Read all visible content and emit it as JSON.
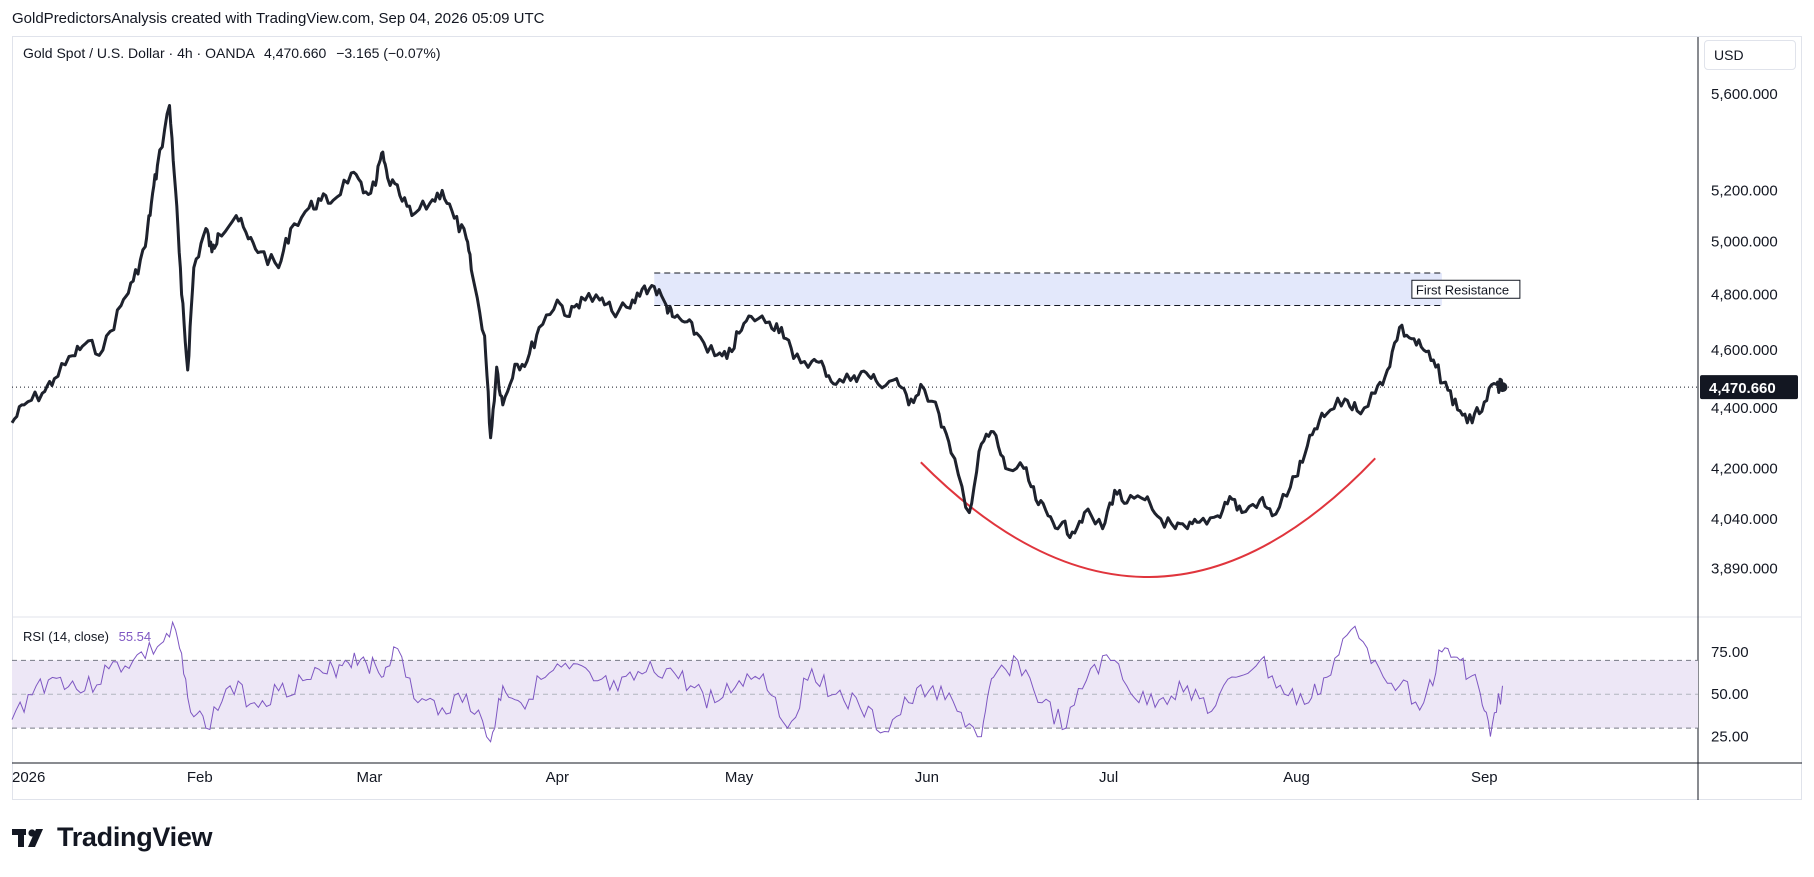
{
  "attribution": "GoldPredictorsAnalysis created with TradingView.com, Sep 04, 2026 05:09 UTC",
  "legend": {
    "symbol": "Gold Spot / U.S. Dollar",
    "interval": "4h",
    "source": "OANDA",
    "price": "4,470.660",
    "change": "−3.165 (−0.07%)"
  },
  "currency_button": "USD",
  "rsi_legend": {
    "label": "RSI (14, close)",
    "value": "55.54"
  },
  "logo_text": "TradingView",
  "colors": {
    "price_line": "#1e222d",
    "rsi_line": "#7e57c2",
    "rsi_band": "#ede7f6",
    "resistance_zone": "#e3e8fb",
    "arc": "#e0353d",
    "price_label_bg": "#131722"
  },
  "chart_data": [
    {
      "type": "line",
      "title": "Gold Spot / U.S. Dollar · 4h · OANDA",
      "y_scale": "log",
      "ylim": [
        3750,
        5850
      ],
      "y_ticks": [
        "5,600.000",
        "5,200.000",
        "5,000.000",
        "4,800.000",
        "4,600.000",
        "4,400.000",
        "4,200.000",
        "4,040.000",
        "3,890.000"
      ],
      "y_tick_values": [
        5600,
        5200,
        5000,
        4800,
        4600,
        4400,
        4200,
        4040,
        3890
      ],
      "x_labels": [
        "2026",
        "Feb",
        "Mar",
        "Apr",
        "May",
        "Jun",
        "Jul",
        "Aug",
        "Sep"
      ],
      "x_label_dates": [
        "2026-01-01",
        "2026-02-01",
        "2026-03-01",
        "2026-04-01",
        "2026-05-01",
        "2026-06-01",
        "2026-07-01",
        "2026-08-01",
        "2026-09-01"
      ],
      "xlim": [
        "2026-01-01",
        "2026-09-30"
      ],
      "series": [
        {
          "x": [
            "2026-01-01",
            "2026-01-03",
            "2026-01-06",
            "2026-01-08",
            "2026-01-11",
            "2026-01-13",
            "2026-01-16",
            "2026-01-19",
            "2026-01-21",
            "2026-01-23",
            "2026-01-24",
            "2026-01-25",
            "2026-01-27",
            "2026-01-28",
            "2026-01-29",
            "2026-01-30",
            "2026-01-31",
            "2026-02-02",
            "2026-02-03",
            "2026-02-04",
            "2026-02-07",
            "2026-02-09",
            "2026-02-11",
            "2026-02-14",
            "2026-02-16",
            "2026-02-19",
            "2026-02-21",
            "2026-02-23",
            "2026-02-26",
            "2026-02-28",
            "2026-03-02",
            "2026-03-03",
            "2026-03-04",
            "2026-03-06",
            "2026-03-08",
            "2026-03-11",
            "2026-03-13",
            "2026-03-15",
            "2026-03-17",
            "2026-03-18",
            "2026-03-20",
            "2026-03-21",
            "2026-03-22",
            "2026-03-23",
            "2026-03-25",
            "2026-03-27",
            "2026-03-29",
            "2026-04-01",
            "2026-04-03",
            "2026-04-05",
            "2026-04-08",
            "2026-04-10",
            "2026-04-13",
            "2026-04-15",
            "2026-04-17",
            "2026-04-19",
            "2026-04-20",
            "2026-04-22",
            "2026-04-24",
            "2026-04-27",
            "2026-04-29",
            "2026-05-01",
            "2026-05-03",
            "2026-05-06",
            "2026-05-08",
            "2026-05-10",
            "2026-05-13",
            "2026-05-15",
            "2026-05-17",
            "2026-05-20",
            "2026-05-22",
            "2026-05-24",
            "2026-05-27",
            "2026-05-29",
            "2026-05-31",
            "2026-06-03",
            "2026-06-05",
            "2026-06-08",
            "2026-06-10",
            "2026-06-12",
            "2026-06-14",
            "2026-06-17",
            "2026-06-19",
            "2026-06-21",
            "2026-06-23",
            "2026-06-25",
            "2026-06-27",
            "2026-06-30",
            "2026-07-02",
            "2026-07-04",
            "2026-07-07",
            "2026-07-09",
            "2026-07-12",
            "2026-07-14",
            "2026-07-16",
            "2026-07-19",
            "2026-07-21",
            "2026-07-23",
            "2026-07-26",
            "2026-07-28",
            "2026-07-31",
            "2026-08-02",
            "2026-08-04",
            "2026-08-06",
            "2026-08-09",
            "2026-08-11",
            "2026-08-14",
            "2026-08-16",
            "2026-08-18",
            "2026-08-20",
            "2026-08-22",
            "2026-08-24",
            "2026-08-26",
            "2026-08-28",
            "2026-08-30",
            "2026-09-01",
            "2026-09-03",
            "2026-09-04"
          ],
          "values": [
            4350,
            4410,
            4450,
            4500,
            4580,
            4620,
            4600,
            4760,
            4850,
            4980,
            5150,
            5300,
            5550,
            5200,
            4800,
            4530,
            4900,
            5050,
            4960,
            5030,
            5100,
            5010,
            4960,
            4900,
            5050,
            5130,
            5160,
            5160,
            5270,
            5190,
            5220,
            5350,
            5250,
            5180,
            5100,
            5150,
            5200,
            5090,
            5010,
            4870,
            4650,
            4300,
            4540,
            4410,
            4550,
            4560,
            4680,
            4780,
            4720,
            4790,
            4780,
            4740,
            4750,
            4820,
            4830,
            4760,
            4720,
            4700,
            4660,
            4580,
            4570,
            4660,
            4720,
            4700,
            4680,
            4570,
            4560,
            4540,
            4480,
            4510,
            4520,
            4480,
            4500,
            4410,
            4480,
            4380,
            4250,
            4060,
            4280,
            4320,
            4200,
            4200,
            4100,
            4050,
            4020,
            4000,
            4060,
            4010,
            4130,
            4090,
            4100,
            4050,
            4010,
            4010,
            4030,
            4050,
            4110,
            4060,
            4100,
            4050,
            4140,
            4220,
            4330,
            4380,
            4430,
            4390,
            4450,
            4530,
            4680,
            4640,
            4600,
            4540,
            4460,
            4390,
            4350,
            4420,
            4480,
            4470.66
          ]
        }
      ],
      "last_price": "4,470.660",
      "annotations": [
        {
          "type": "zone",
          "label": "First Resistance",
          "y_range": [
            4760,
            4880
          ],
          "x_range": [
            "2026-04-17",
            "2026-08-25"
          ]
        },
        {
          "type": "arc",
          "description": "rounded bottom",
          "x_range": [
            "2026-05-31",
            "2026-08-14"
          ],
          "min_value": 3870,
          "min_date": "2026-07-08"
        }
      ]
    },
    {
      "type": "line",
      "title": "RSI (14, close)",
      "ylim": [
        10,
        95
      ],
      "y_ticks": [
        "75.00",
        "50.00",
        "25.00"
      ],
      "y_tick_values": [
        75,
        50,
        25
      ],
      "bands": [
        30,
        50,
        70
      ],
      "series": [
        {
          "x": [
            "2026-01-01",
            "2026-01-05",
            "2026-01-09",
            "2026-01-13",
            "2026-01-17",
            "2026-01-21",
            "2026-01-25",
            "2026-01-28",
            "2026-01-30",
            "2026-02-02",
            "2026-02-06",
            "2026-02-10",
            "2026-02-14",
            "2026-02-18",
            "2026-02-22",
            "2026-02-25",
            "2026-02-28",
            "2026-03-03",
            "2026-03-05",
            "2026-03-09",
            "2026-03-13",
            "2026-03-17",
            "2026-03-21",
            "2026-03-23",
            "2026-03-26",
            "2026-03-30",
            "2026-04-03",
            "2026-04-07",
            "2026-04-11",
            "2026-04-15",
            "2026-04-19",
            "2026-04-23",
            "2026-04-27",
            "2026-05-01",
            "2026-05-05",
            "2026-05-09",
            "2026-05-13",
            "2026-05-17",
            "2026-05-21",
            "2026-05-25",
            "2026-05-29",
            "2026-06-02",
            "2026-06-06",
            "2026-06-10",
            "2026-06-12",
            "2026-06-16",
            "2026-06-20",
            "2026-06-24",
            "2026-06-28",
            "2026-07-02",
            "2026-07-06",
            "2026-07-10",
            "2026-07-14",
            "2026-07-18",
            "2026-07-22",
            "2026-07-26",
            "2026-07-30",
            "2026-08-03",
            "2026-08-06",
            "2026-08-10",
            "2026-08-14",
            "2026-08-18",
            "2026-08-22",
            "2026-08-25",
            "2026-08-28",
            "2026-08-31",
            "2026-09-02",
            "2026-09-04"
          ],
          "values": [
            35,
            55,
            60,
            52,
            65,
            70,
            78,
            88,
            48,
            30,
            55,
            45,
            52,
            58,
            62,
            70,
            72,
            60,
            78,
            45,
            42,
            50,
            22,
            55,
            45,
            60,
            65,
            58,
            52,
            62,
            65,
            55,
            45,
            58,
            62,
            30,
            65,
            50,
            42,
            28,
            45,
            55,
            40,
            25,
            60,
            70,
            45,
            30,
            65,
            70,
            45,
            48,
            55,
            40,
            60,
            70,
            50,
            45,
            60,
            88,
            70,
            55,
            45,
            75,
            70,
            55,
            25,
            55
          ]
        }
      ]
    }
  ]
}
